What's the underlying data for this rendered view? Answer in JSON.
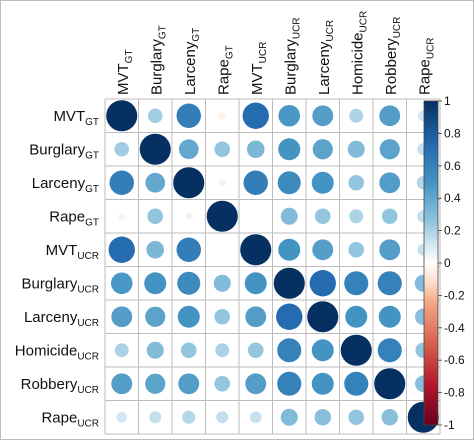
{
  "chart_data": {
    "type": "heatmap",
    "title": "",
    "variables": [
      {
        "base": "MVT",
        "sub": "GT"
      },
      {
        "base": "Burglary",
        "sub": "GT"
      },
      {
        "base": "Larceny",
        "sub": "GT"
      },
      {
        "base": "Rape",
        "sub": "GT"
      },
      {
        "base": "MVT",
        "sub": "UCR"
      },
      {
        "base": "Burglary",
        "sub": "UCR"
      },
      {
        "base": "Larceny",
        "sub": "UCR"
      },
      {
        "base": "Homicide",
        "sub": "UCR"
      },
      {
        "base": "Robbery",
        "sub": "UCR"
      },
      {
        "base": "Rape",
        "sub": "UCR"
      }
    ],
    "matrix": [
      [
        1.0,
        0.22,
        0.62,
        -0.05,
        0.72,
        0.48,
        0.45,
        0.2,
        0.45,
        0.12
      ],
      [
        0.22,
        1.0,
        0.4,
        0.25,
        0.32,
        0.5,
        0.42,
        0.3,
        0.42,
        0.15
      ],
      [
        0.62,
        0.4,
        1.0,
        0.05,
        0.62,
        0.55,
        0.5,
        0.25,
        0.45,
        0.18
      ],
      [
        -0.05,
        0.25,
        0.05,
        1.0,
        0.0,
        0.3,
        0.25,
        0.2,
        0.25,
        0.15
      ],
      [
        0.72,
        0.32,
        0.62,
        0.0,
        1.0,
        0.5,
        0.45,
        0.25,
        0.45,
        0.14
      ],
      [
        0.48,
        0.5,
        0.55,
        0.3,
        0.5,
        1.0,
        0.72,
        0.6,
        0.6,
        0.3
      ],
      [
        0.45,
        0.42,
        0.5,
        0.25,
        0.45,
        0.72,
        1.0,
        0.5,
        0.5,
        0.28
      ],
      [
        0.2,
        0.3,
        0.25,
        0.2,
        0.25,
        0.6,
        0.5,
        1.0,
        0.6,
        0.25
      ],
      [
        0.45,
        0.42,
        0.45,
        0.25,
        0.45,
        0.6,
        0.5,
        0.6,
        1.0,
        0.28
      ],
      [
        0.12,
        0.15,
        0.18,
        0.15,
        0.14,
        0.3,
        0.28,
        0.25,
        0.28,
        1.0
      ]
    ],
    "colorbar": {
      "range": [
        -1,
        1
      ],
      "ticks": [
        "-1",
        "-0.8",
        "-0.6",
        "-0.4",
        "-0.2",
        "0",
        "0.2",
        "0.4",
        "0.6",
        "0.8",
        "1"
      ]
    },
    "colors": {
      "negative": "#67001F",
      "neutral": "#FFFFFF",
      "positive": "#053061",
      "grid": "#bdbdbd"
    },
    "grid": true,
    "legend_position": "right"
  }
}
